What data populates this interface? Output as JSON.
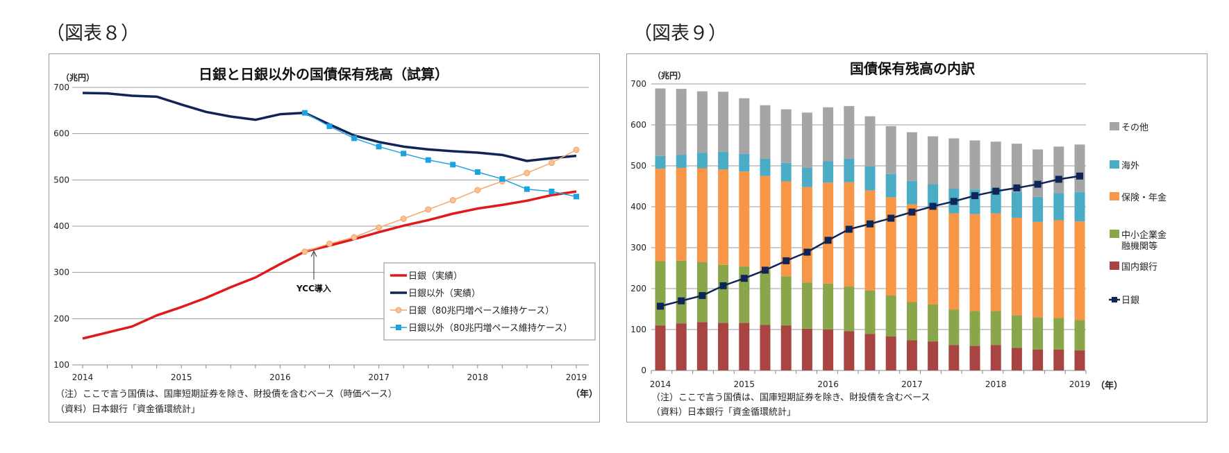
{
  "figures": [
    {
      "label": "（図表８）"
    },
    {
      "label": "（図表９）"
    }
  ],
  "chart_data": [
    {
      "type": "line",
      "title": "日銀と日銀以外の国債保有残高（試算）",
      "ylabel": "（兆円）",
      "xlabel": "（年）",
      "ylim": [
        100,
        700
      ],
      "yticks": [
        100,
        200,
        300,
        400,
        500,
        600,
        700
      ],
      "xticks": [
        "2014",
        "2015",
        "2016",
        "2017",
        "2018",
        "2019"
      ],
      "x_frequency": "quarterly",
      "grid": true,
      "legend_position": "bottom-right",
      "annotation": "YCC導入",
      "series": [
        {
          "name": "日銀（実績）",
          "color": "#e0191b",
          "start_index": 0,
          "values": [
            157,
            170,
            183,
            207,
            225,
            245,
            268,
            289,
            318,
            345,
            358,
            372,
            387,
            401,
            413,
            427,
            438,
            446,
            455,
            467,
            475
          ]
        },
        {
          "name": "日銀以外（実績）",
          "color": "#0f2557",
          "start_index": 0,
          "values": [
            688,
            687,
            682,
            680,
            663,
            647,
            637,
            630,
            642,
            645,
            620,
            596,
            582,
            572,
            566,
            562,
            559,
            554,
            541,
            547,
            552
          ]
        },
        {
          "name": "日銀（80兆円増ペース維持ケース）",
          "color": "#f4a66b",
          "start_index": 9,
          "values": [
            345,
            362,
            376,
            397,
            416,
            436,
            456,
            478,
            497,
            515,
            537,
            565
          ]
        },
        {
          "name": "日銀以外（80兆円増ペース維持ケース）",
          "color": "#1ca3df",
          "start_index": 9,
          "values": [
            645,
            616,
            590,
            572,
            557,
            543,
            533,
            517,
            502,
            480,
            475,
            464
          ]
        }
      ],
      "notes": [
        "（注）ここで言う国債は、国庫短期証券を除き、財投債を含むベース（時価ベース）",
        "（資料）日本銀行「資金循環統計」"
      ]
    },
    {
      "type": "bar",
      "stacked": true,
      "title": "国債保有残高の内訳",
      "ylabel": "（兆円）",
      "xlabel": "（年）",
      "ylim": [
        0,
        700
      ],
      "yticks": [
        0,
        100,
        200,
        300,
        400,
        500,
        600,
        700
      ],
      "xticks": [
        "2014",
        "2015",
        "2016",
        "2017",
        "2018",
        "2019"
      ],
      "x_frequency": "quarterly",
      "grid": true,
      "legend_position": "right",
      "series": [
        {
          "name": "国内銀行",
          "color": "#a84543",
          "values": [
            110,
            115,
            118,
            116,
            116,
            111,
            110,
            102,
            100,
            96,
            89,
            83,
            74,
            71,
            62,
            60,
            62,
            55,
            51,
            51,
            49
          ]
        },
        {
          "name": "中小企業金融機関等",
          "color": "#8aa64a",
          "values": [
            157,
            153,
            147,
            142,
            138,
            134,
            120,
            113,
            112,
            109,
            106,
            100,
            93,
            90,
            87,
            85,
            83,
            80,
            79,
            77,
            74
          ]
        },
        {
          "name": "保険・年金",
          "color": "#f79646",
          "values": [
            226,
            227,
            229,
            233,
            232,
            230,
            232,
            233,
            247,
            255,
            245,
            240,
            239,
            237,
            235,
            237,
            239,
            238,
            233,
            239,
            241
          ]
        },
        {
          "name": "海外",
          "color": "#4bacc6",
          "values": [
            31,
            32,
            38,
            43,
            43,
            42,
            45,
            47,
            52,
            57,
            59,
            57,
            57,
            57,
            60,
            60,
            62,
            63,
            61,
            66,
            72
          ]
        },
        {
          "name": "その他",
          "color": "#a5a5a5",
          "values": [
            165,
            161,
            150,
            147,
            136,
            131,
            131,
            135,
            132,
            129,
            122,
            117,
            119,
            117,
            123,
            120,
            113,
            118,
            116,
            114,
            116
          ]
        }
      ],
      "line_series": {
        "name": "日銀",
        "color": "#0f2557",
        "values": [
          157,
          170,
          183,
          207,
          225,
          245,
          268,
          289,
          318,
          345,
          358,
          372,
          387,
          401,
          413,
          427,
          438,
          446,
          455,
          467,
          475
        ]
      },
      "legend_labels": [
        "その他",
        "海外",
        "保険・年金",
        "中小企業金",
        "融機関等",
        "国内銀行",
        "日銀"
      ],
      "notes": [
        "（注）ここで言う国債は、国庫短期証券を除き、財投債を含むベース",
        "（資料）日本銀行「資金循環統計」"
      ]
    }
  ]
}
